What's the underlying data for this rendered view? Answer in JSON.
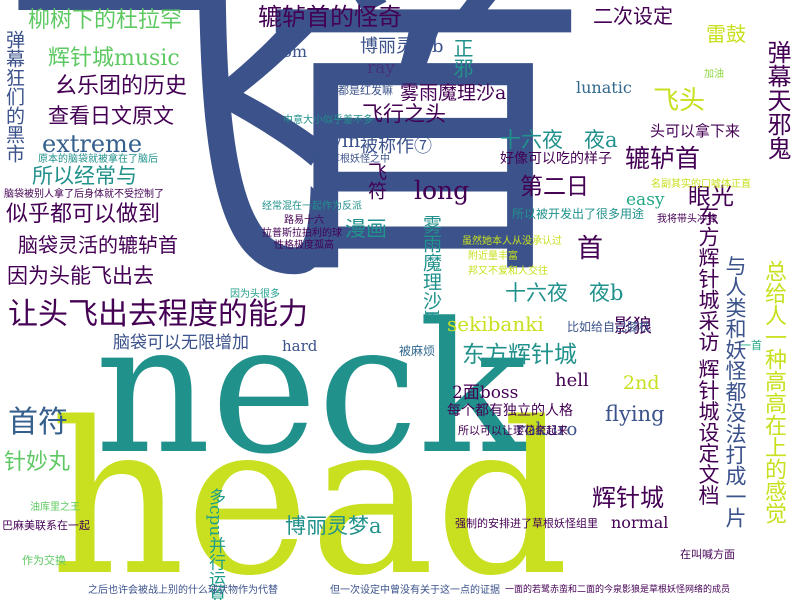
{
  "words": {
    "fei": "飞",
    "shou": "首",
    "neck": "neck",
    "head": "head",
    "liushu": "柳树下的杜拉罕",
    "huizhen": "辉针城music",
    "yuelutuan": "幺乐团的历史",
    "chakan": "查看日文原文",
    "extreme": "extreme",
    "suoyi": "所以经常与",
    "sihu": "似乎都可以做到",
    "naodai_linghuo": "脑袋灵活的辘轳首",
    "yinwei": "因为头能飞出去",
    "ratou": "让头飞出去程度的能力",
    "shoufu": "首符",
    "zhenmiao": "针妙丸",
    "lulu_guaiqi": "辘轳首的怪奇",
    "boli_b": "博丽灵梦b",
    "ray": "ray",
    "room": "room",
    "zhengxie": "正邪",
    "erci": "二次设定",
    "leigu": "雷鼓",
    "tanmu": "弹幕天邪鬼",
    "feitou": "飞头",
    "feixing": "飞行之头",
    "wuyu_a": "雾雨魔理沙a",
    "lunatic": "lunatic",
    "twin": "twin",
    "beichengzuo": "被称作⑦",
    "shiliu_a": "十六夜　夜a",
    "touke": "头可以拿下来",
    "lulushou": "辘轳首",
    "dierri": "第二日",
    "long": "long",
    "yanguang": "眼光",
    "manhua": "漫画",
    "easy": "easy",
    "shou_small": "首",
    "feifu": "飞符",
    "wuyu_b": "雾雨魔理沙b",
    "shiliu_b": "十六夜　夜b",
    "dongfang_fangtan": "东方辉针城采访 辉针城设定文档",
    "yurenlei": "与人类和妖怪都没法打成一片",
    "sekibanki": "sekibanki",
    "yinglang": "影狼",
    "naodai_wuxian": "脑袋可以无限增加",
    "hard": "hard",
    "dongfang_huizhen": "东方辉针城",
    "hell": "hell",
    "second": "2nd",
    "boss": "2面boss",
    "flying": "flying",
    "rokuro": "rokuro",
    "meige": "每个都有独立的人格",
    "huizhencheng2": "辉针城",
    "normal": "normal",
    "boli_a": "博丽灵梦a",
    "zonggei": "总给人一种高高在上的感觉",
    "tanmu_kuang": "弹幕狂们的黑市",
    "haoxiang": "好像可以吃的样子",
    "suoyi_kaifa": "所以被开发出了很多用途",
    "fanzheng": "反正都是红发嘛",
    "biru": "比如给自己膝枕",
    "bei_mafan": "被麻烦",
    "duoCPU": "多cpu并行运算",
    "mingfu": "名副其实的口嘘体正直",
    "wo_ye": "我将带头冲锋",
    "zuoweijiaohuan": "作为交换",
    "youran": "油库里之王",
    "bali": "巴麻美联系在一起",
    "suoyi_yiyuan": "所以可以让璎花牵起来",
    "qiangzhi": "强制的安排进了草根妖怪组里",
    "zaiming": "在叫喊方面",
    "buliao": "原本的脑袋就被拿在了脑后",
    "naodai_bei": "脑袋被别人拿了后身体就不受控制了",
    "zhongyi": "中意大小似乎差不多",
    "jingchang": "经常混在一起作为反派",
    "yinwei_tou": "因为头很多",
    "lujing": "路易十六",
    "lagesi": "拉普斯拉拍利的球",
    "xingge": "性格极度孤高",
    "youyu": "由于草根妖怪之中",
    "bang": "邦又不爱和人交往",
    "suiran": "虽然她本人从没承认过",
    "fujin": "附近量丰富",
    "zhihou": "之后也许会被战上别的什么球状物作为代替",
    "danyi": "但一次设定中曾没有关于这一点的证据",
    "yimu": "一面的若鹭赤蛮和二面的今泉影狼是草根妖怪网络的成员",
    "jiayou": "加油",
    "yishou": "一首"
  }
}
